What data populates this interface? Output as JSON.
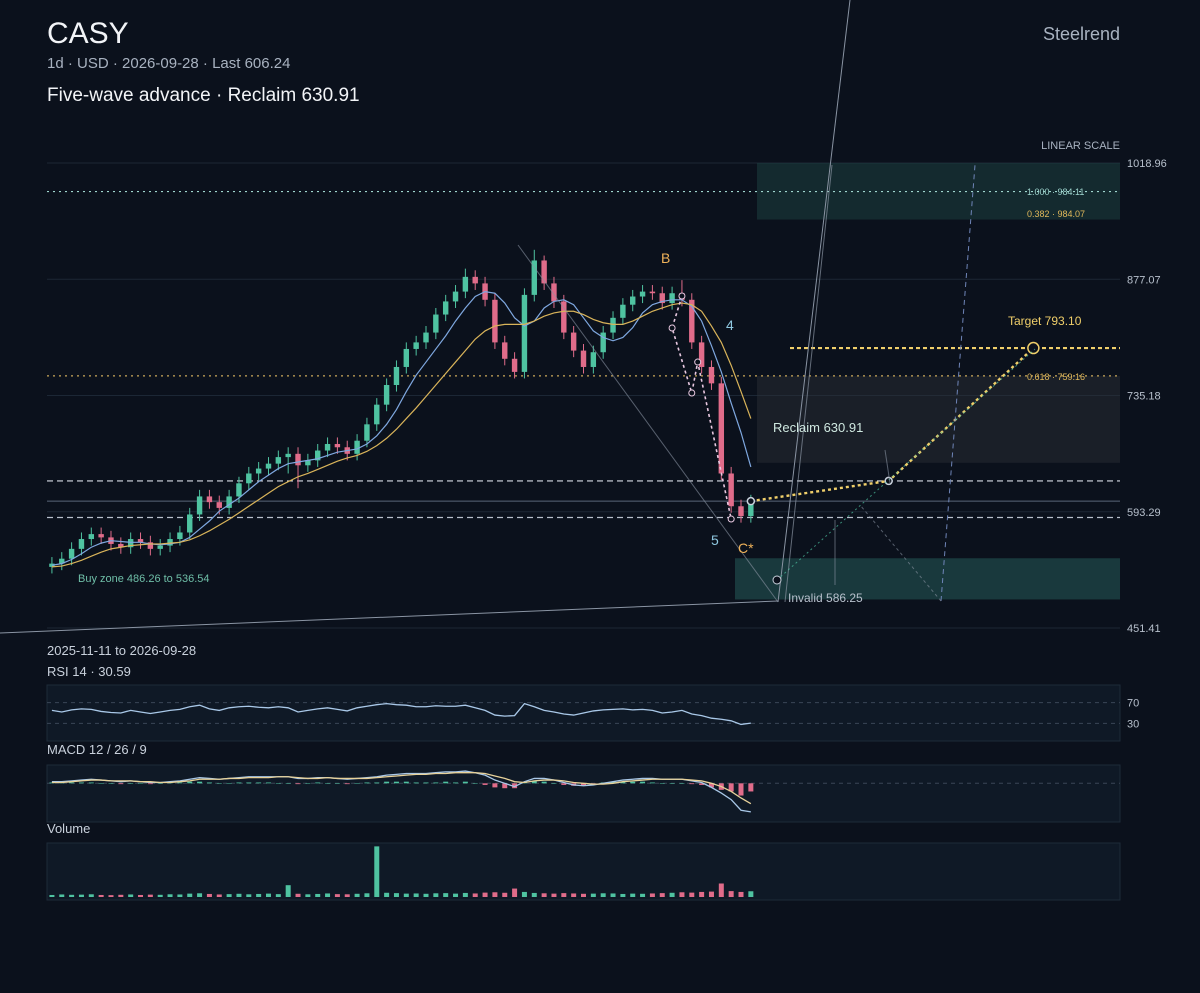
{
  "brand": "Steelrend",
  "title": "CASY",
  "subtitle": "1d · USD · 2026-09-28 · Last 606.24",
  "headline": "Five-wave advance · Reclaim 630.91",
  "chart_data": [
    {
      "type": "candlestick",
      "scale_label": "LINEAR SCALE",
      "date_range": "2025-11-11 to 2026-09-28",
      "xlim": [
        0,
        109
      ],
      "ylim": [
        451.41,
        1018.96
      ],
      "yticks": [
        451.41,
        593.29,
        735.18,
        877.07,
        1018.96
      ],
      "grid": true,
      "up_color": "#4fc3a1",
      "down_color": "#e06c8a",
      "open": [
        526,
        530,
        536,
        548,
        560,
        566,
        562,
        554,
        550,
        560,
        556,
        548,
        552,
        560,
        568,
        590,
        612,
        605,
        598,
        612,
        628,
        640,
        646,
        652,
        660,
        664,
        650,
        656,
        668,
        676,
        672,
        664,
        680,
        700,
        724,
        748,
        770,
        792,
        800,
        812,
        834,
        850,
        862,
        880,
        872,
        852,
        800,
        780,
        764,
        858,
        900,
        872,
        850,
        812,
        790,
        770,
        788,
        812,
        830,
        846,
        856,
        862,
        860,
        848,
        860,
        852,
        800,
        770,
        750,
        640,
        600,
        588
      ],
      "high": [
        538,
        544,
        556,
        568,
        574,
        574,
        570,
        562,
        568,
        568,
        564,
        560,
        568,
        576,
        598,
        620,
        620,
        613,
        620,
        636,
        648,
        654,
        660,
        668,
        672,
        672,
        664,
        676,
        684,
        684,
        680,
        688,
        708,
        732,
        756,
        778,
        800,
        808,
        820,
        842,
        858,
        870,
        890,
        888,
        880,
        860,
        808,
        788,
        866,
        913,
        906,
        880,
        858,
        820,
        798,
        796,
        820,
        838,
        854,
        864,
        870,
        870,
        868,
        868,
        876,
        860,
        808,
        778,
        758,
        648,
        608,
        614
      ],
      "low": [
        518,
        522,
        528,
        540,
        552,
        554,
        546,
        542,
        542,
        548,
        540,
        540,
        544,
        552,
        560,
        582,
        597,
        590,
        590,
        604,
        620,
        632,
        638,
        644,
        640,
        622,
        642,
        648,
        660,
        664,
        656,
        656,
        672,
        692,
        716,
        740,
        762,
        784,
        792,
        804,
        826,
        842,
        854,
        864,
        844,
        792,
        772,
        756,
        756,
        850,
        864,
        842,
        804,
        782,
        762,
        762,
        780,
        804,
        822,
        838,
        848,
        852,
        840,
        840,
        844,
        792,
        762,
        742,
        632,
        592,
        580,
        580
      ],
      "close": [
        530,
        536,
        548,
        560,
        566,
        562,
        554,
        550,
        560,
        556,
        548,
        552,
        560,
        568,
        590,
        612,
        605,
        598,
        612,
        628,
        640,
        646,
        652,
        660,
        664,
        650,
        656,
        668,
        676,
        672,
        664,
        680,
        700,
        724,
        748,
        770,
        792,
        800,
        812,
        834,
        850,
        862,
        880,
        872,
        852,
        800,
        780,
        764,
        858,
        900,
        872,
        850,
        812,
        790,
        770,
        788,
        812,
        830,
        846,
        856,
        862,
        860,
        848,
        860,
        852,
        800,
        770,
        750,
        640,
        600,
        588,
        606.24
      ],
      "overlays": [
        {
          "color": "#7fa8e0",
          "values": [
            528,
            530,
            535,
            542,
            550,
            555,
            558,
            557,
            556,
            556,
            554,
            553,
            554,
            556,
            562,
            572,
            582,
            594,
            602,
            610,
            620,
            630,
            638,
            646,
            652,
            654,
            656,
            658,
            662,
            666,
            668,
            670,
            676,
            686,
            700,
            718,
            740,
            760,
            776,
            792,
            808,
            826,
            842,
            856,
            862,
            860,
            848,
            830,
            820,
            826,
            842,
            850,
            852,
            846,
            830,
            814,
            806,
            802,
            806,
            818,
            836,
            846,
            850,
            852,
            852,
            844,
            826,
            796,
            764,
            726,
            690,
            648
          ]
        },
        {
          "color": "#d9b45a",
          "values": [
            526,
            527,
            530,
            534,
            539,
            544,
            548,
            550,
            552,
            553,
            554,
            554,
            555,
            556,
            559,
            564,
            570,
            577,
            584,
            592,
            600,
            608,
            616,
            624,
            630,
            636,
            640,
            645,
            650,
            655,
            659,
            662,
            667,
            674,
            683,
            694,
            707,
            720,
            734,
            748,
            762,
            776,
            790,
            804,
            814,
            820,
            822,
            822,
            822,
            826,
            832,
            836,
            838,
            838,
            834,
            828,
            824,
            822,
            822,
            826,
            832,
            838,
            842,
            846,
            848,
            846,
            838,
            820,
            800,
            772,
            740,
            707
          ]
        }
      ],
      "levels": [
        {
          "value": 984.11,
          "style": "dotted",
          "color": "#9fd6cf"
        },
        {
          "value": 759.16,
          "style": "dotted",
          "color": "#c9a85a"
        },
        {
          "value": 793.1,
          "style": "target",
          "color": "#f0cf6a"
        },
        {
          "value": 630.91,
          "style": "dashed",
          "color": "#d8dde6"
        },
        {
          "value": 606.24,
          "style": "faint",
          "color": "#5a6678"
        },
        {
          "value": 586.25,
          "style": "dashed",
          "color": "#b8c0cc"
        }
      ],
      "zones": [
        {
          "low": 486.26,
          "high": 536.54,
          "color": "#2a6b66"
        },
        {
          "low": 653,
          "high": 759.16,
          "color": "#2c3038"
        },
        {
          "low": 950,
          "high": 1018.96,
          "color": "#1f4a48"
        }
      ],
      "projection": {
        "x": [
          71,
          85,
          99.7
        ],
        "y": [
          606.24,
          630.91,
          793.1
        ],
        "color": "#f0cf6a"
      },
      "wave_path": {
        "x": [
          64,
          63,
          65,
          65.6,
          69
        ],
        "y": [
          856.6,
          817.6,
          738.2,
          776,
          584.4
        ],
        "color": "#e8c8e0"
      },
      "annotations": {
        "target": "Target 793.10",
        "reclaim": "Reclaim 630.91",
        "buy": "Buy zone 486.26 to 536.54",
        "invalid": "Invalid 586.25",
        "fib1": "1.000 · 984.11",
        "fib2": "0.382 · 984.07",
        "fib3": "0.618 · 759.16",
        "wave_b": "B",
        "wave_4": "4",
        "wave_5": "5",
        "wave_c": "C*"
      }
    },
    {
      "type": "line",
      "title": "RSI 14 · 30.59",
      "ylim": [
        0,
        100
      ],
      "yticks": [
        30,
        70
      ],
      "color": "#a9c8e8",
      "values": [
        55,
        52,
        56,
        58,
        57,
        53,
        51,
        50,
        55,
        52,
        49,
        52,
        55,
        57,
        62,
        65,
        58,
        55,
        60,
        62,
        63,
        61,
        60,
        62,
        60,
        52,
        55,
        58,
        60,
        57,
        54,
        60,
        63,
        66,
        68,
        66,
        65,
        62,
        62,
        64,
        63,
        63,
        65,
        60,
        55,
        46,
        44,
        45,
        68,
        62,
        55,
        52,
        48,
        46,
        50,
        54,
        56,
        57,
        58,
        56,
        57,
        55,
        50,
        52,
        55,
        48,
        45,
        40,
        38,
        35,
        28,
        30.59
      ]
    },
    {
      "type": "macd",
      "title": "MACD 12 / 26 / 9",
      "ylim": [
        -45,
        20
      ],
      "baseline": 0,
      "series": [
        {
          "color": "#a9c8e8",
          "values": [
            2,
            2,
            3,
            4,
            5,
            4,
            3,
            2,
            3,
            2,
            1,
            1,
            2,
            3,
            5,
            7,
            6,
            5,
            6,
            7,
            8,
            8,
            8,
            8,
            8,
            6,
            6,
            7,
            7,
            6,
            5,
            6,
            7,
            8,
            10,
            11,
            12,
            12,
            12,
            13,
            14,
            14,
            15,
            13,
            10,
            4,
            0,
            -4,
            2,
            6,
            6,
            4,
            1,
            -2,
            -3,
            -2,
            0,
            2,
            4,
            5,
            6,
            6,
            5,
            5,
            5,
            3,
            1,
            -5,
            -12,
            -20,
            -33,
            -35
          ]
        },
        {
          "color": "#e8d29a",
          "values": [
            1,
            1,
            2,
            3,
            4,
            4,
            3,
            3,
            3,
            2,
            2,
            1,
            1,
            2,
            3,
            5,
            5,
            5,
            6,
            6,
            7,
            7,
            7,
            8,
            8,
            7,
            6,
            6,
            7,
            6,
            6,
            6,
            6,
            7,
            8,
            9,
            10,
            11,
            11,
            12,
            12,
            13,
            13,
            13,
            12,
            9,
            6,
            2,
            1,
            3,
            4,
            4,
            3,
            1,
            0,
            -1,
            -1,
            0,
            2,
            3,
            4,
            5,
            5,
            5,
            5,
            4,
            3,
            0,
            -4,
            -10,
            -18,
            -25
          ]
        }
      ],
      "histogram": {
        "up_color": "#4fc3a1",
        "down_color": "#e06c8a",
        "values": [
          1,
          1,
          1,
          1,
          1,
          0,
          0,
          -1,
          0,
          0,
          -1,
          0,
          1,
          1,
          2,
          2,
          1,
          0,
          0,
          1,
          1,
          1,
          1,
          0,
          0,
          -1,
          0,
          1,
          0,
          0,
          -1,
          0,
          1,
          1,
          2,
          2,
          2,
          1,
          1,
          1,
          2,
          1,
          2,
          0,
          -2,
          -5,
          -6,
          -6,
          1,
          3,
          2,
          0,
          -2,
          -3,
          -3,
          -1,
          1,
          2,
          2,
          2,
          2,
          1,
          0,
          0,
          0,
          -1,
          -2,
          -5,
          -8,
          -10,
          -15,
          -10
        ]
      }
    },
    {
      "type": "bar",
      "title": "Volume",
      "ylim": [
        0,
        32
      ],
      "values": [
        1.2,
        1.5,
        1.3,
        1.4,
        1.6,
        1.2,
        1.1,
        1.3,
        1.5,
        1.2,
        1.4,
        1.3,
        1.6,
        1.5,
        2.0,
        2.2,
        1.8,
        1.5,
        1.7,
        1.9,
        1.6,
        1.8,
        2.0,
        1.7,
        7.0,
        1.9,
        1.6,
        1.8,
        2.1,
        1.7,
        1.6,
        1.9,
        2.2,
        30.0,
        2.5,
        2.3,
        2.0,
        2.1,
        1.9,
        2.2,
        2.3,
        2.0,
        2.4,
        2.1,
        2.6,
        2.8,
        2.5,
        5.0,
        3.0,
        2.4,
        2.2,
        2.0,
        2.3,
        2.1,
        1.9,
        2.0,
        2.2,
        2.1,
        1.8,
        2.0,
        1.9,
        2.1,
        2.3,
        2.5,
        2.8,
        2.6,
        3.0,
        3.2,
        8.0,
        3.5,
        3.0,
        3.4
      ]
    }
  ]
}
